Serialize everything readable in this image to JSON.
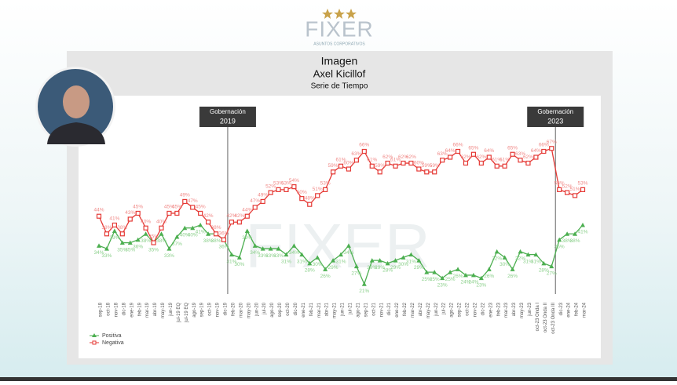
{
  "header": {
    "brand": "FIXER",
    "tagline": "ASUNTOS CORPORATIVOS"
  },
  "chart_data": {
    "type": "line",
    "title": "Imagen",
    "subtitle": "Axel Kicillof",
    "caption": "Serie de Tiempo",
    "categories": [
      "sep-18",
      "oct-18",
      "nov-18",
      "dic-18",
      "ene-19",
      "feb-19",
      "mar-19",
      "abr-19",
      "may-19",
      "jun-19",
      "jul-19 EQ",
      "jul-19 EQ",
      "ago-19",
      "sep-19",
      "oct-19",
      "nov-19",
      "dic-19",
      "feb-20",
      "mar-20",
      "may-20",
      "jun-20",
      "jul-20",
      "ago-20",
      "sep-20",
      "oct-20",
      "dic-20",
      "ene-21",
      "feb-21",
      "mar-21",
      "abr-21",
      "may-21",
      "jun-21",
      "jul-21",
      "ago-21",
      "sep-21",
      "oct-21",
      "nov-21",
      "dic-21",
      "ene-22",
      "feb-22",
      "mar-22",
      "abr-22",
      "may-22",
      "jun-22",
      "jul-22",
      "ago-22",
      "sep-22",
      "oct-22",
      "nov-22",
      "dic-22",
      "ene-23",
      "feb-23",
      "mar-23",
      "abr-23",
      "may-23",
      "jun-23",
      "oct-23 Onda I",
      "oct-23 Onda II",
      "oct-23 Onda III",
      "dic-23",
      "ene-24",
      "feb-24",
      "mar-24"
    ],
    "series": [
      {
        "name": "Positiva",
        "color": "#4caf50",
        "label_color": "#8cd08c",
        "marker": "triangle",
        "values": [
          34,
          33,
          39,
          35,
          35,
          36,
          38,
          35,
          38,
          33,
          37,
          40,
          40,
          41,
          38,
          38,
          36,
          31,
          30,
          39,
          34,
          33,
          33,
          33,
          31,
          34,
          31,
          28,
          30,
          26,
          29,
          31,
          34,
          27,
          21,
          29,
          29,
          28,
          29,
          30,
          31,
          29,
          25,
          25,
          23,
          25,
          26,
          24,
          24,
          23,
          26,
          32,
          30,
          26,
          32,
          31,
          31,
          28,
          27,
          36,
          38,
          38,
          41
        ],
        "value_labels": [
          "34%",
          "33%",
          "39%",
          "35%",
          "35%",
          "36%",
          "38%",
          "35%",
          "38%",
          "33%",
          "37%",
          "40%",
          "40%",
          "41%",
          "38%",
          "38%",
          "36%",
          "31%",
          "30%",
          "39%",
          "34%",
          "33%",
          "33%",
          "33%",
          "31%",
          "34%",
          "31%",
          "28%",
          "30%",
          "26%",
          "29%",
          "31%",
          "34%",
          "27%",
          "21%",
          "29%",
          "29%",
          "28%",
          "29%",
          "30%",
          "31%",
          "29%",
          "25%",
          "25%",
          "23%",
          "25%",
          "26%",
          "24%",
          "24%",
          "23%",
          "26%",
          "32%",
          "30%",
          "26%",
          "32%",
          "31%",
          "31%",
          "28%",
          "27%",
          "36%",
          "38%",
          "38%",
          "41%"
        ]
      },
      {
        "name": "Negativa",
        "color": "#e53935",
        "label_color": "#f08a88",
        "marker": "square",
        "values": [
          44,
          38,
          41,
          38,
          43,
          45,
          40,
          35,
          40,
          45,
          45,
          49,
          47,
          45,
          42,
          38,
          36,
          42,
          42,
          44,
          47,
          49,
          52,
          53,
          53,
          54,
          50,
          48,
          51,
          53,
          59,
          61,
          60,
          63,
          66,
          61,
          59,
          62,
          61,
          62,
          62,
          60,
          59,
          59,
          63,
          64,
          66,
          62,
          65,
          62,
          64,
          61,
          61,
          65,
          63,
          62,
          64,
          66,
          67,
          53,
          52,
          51,
          53
        ],
        "value_labels": [
          "44%",
          "38%",
          "41%",
          "38%",
          "43%",
          "45%",
          "40%",
          "35%",
          "40%",
          "45%",
          "45%",
          "49%",
          "47%",
          "45%",
          "42%",
          "38%",
          "36%",
          "42%",
          "42%",
          "44%",
          "47%",
          "49%",
          "52%",
          "53%",
          "53%",
          "54%",
          "50%",
          "48%",
          "51%",
          "53%",
          "59%",
          "61%",
          "60%",
          "63%",
          "66%",
          "61%",
          "59%",
          "62%",
          "61%",
          "62%",
          "62%",
          "60%",
          "59%",
          "59%",
          "63%",
          "64%",
          "66%",
          "62%",
          "65%",
          "62%",
          "64%",
          "61%",
          "61%",
          "65%",
          "63%",
          "62%",
          "64%",
          "66%",
          "67%",
          "53%",
          "52%",
          "51%",
          "53%"
        ]
      }
    ],
    "annotations": [
      {
        "label": "Gobernación",
        "year": "2019"
      },
      {
        "label": "Gobernación",
        "year": "2023"
      }
    ],
    "legend": "bottom-left"
  }
}
